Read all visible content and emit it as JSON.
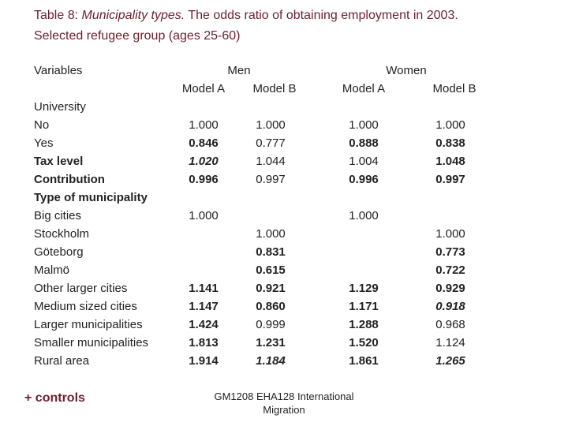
{
  "header": {
    "title_prefix": "Table 8: ",
    "title_emphasis": "Municipality types.",
    "title_rest": " The odds ratio of obtaining employment in 2003.",
    "subtitle": "Selected refugee group (ages 25-60)"
  },
  "table": {
    "variables_header": "Variables",
    "groups": [
      "Men",
      "Women"
    ],
    "columns": [
      "Model A",
      "Model B",
      "Model A",
      "Model B"
    ],
    "rows": [
      {
        "label": "University",
        "values": null
      },
      {
        "label": "No",
        "values": [
          "1.000",
          "1.000",
          "1.000",
          "1.000"
        ]
      },
      {
        "label": "Yes",
        "values": [
          "0.846",
          "0.777",
          "0.888",
          "0.838"
        ]
      },
      {
        "label": "Tax level",
        "values": [
          "1.020",
          "1.044",
          "1.004",
          "1.048"
        ]
      },
      {
        "label": "Contribution",
        "values": [
          "0.996",
          "0.997",
          "0.996",
          "0.997"
        ]
      },
      {
        "label": "Type of municipality",
        "values": null
      },
      {
        "label": "Big cities",
        "values": [
          "1.000",
          null,
          "1.000",
          null
        ]
      },
      {
        "label": "Stockholm",
        "values": [
          null,
          "1.000",
          null,
          "1.000"
        ]
      },
      {
        "label": "Göteborg",
        "values": [
          null,
          "0.831",
          null,
          "0.773"
        ]
      },
      {
        "label": "Malmö",
        "values": [
          null,
          "0.615",
          null,
          "0.722"
        ]
      },
      {
        "label": "Other larger cities",
        "values": [
          "1.141",
          "0.921",
          "1.129",
          "0.929"
        ]
      },
      {
        "label": "Medium sized cities",
        "values": [
          "1.147",
          "0.860",
          "1.171",
          "0.918"
        ]
      },
      {
        "label": "Larger municipalities",
        "values": [
          "1.424",
          "0.999",
          "1.288",
          "0.968"
        ]
      },
      {
        "label": "Smaller municipalities",
        "values": [
          "1.813",
          "1.231",
          "1.520",
          "1.124"
        ]
      },
      {
        "label": "Rural area",
        "values": [
          "1.914",
          "1.184",
          "1.861",
          "1.265"
        ]
      }
    ]
  },
  "footer": {
    "note": "+ controls",
    "source": "GM1208 EHA128 International Migration"
  }
}
